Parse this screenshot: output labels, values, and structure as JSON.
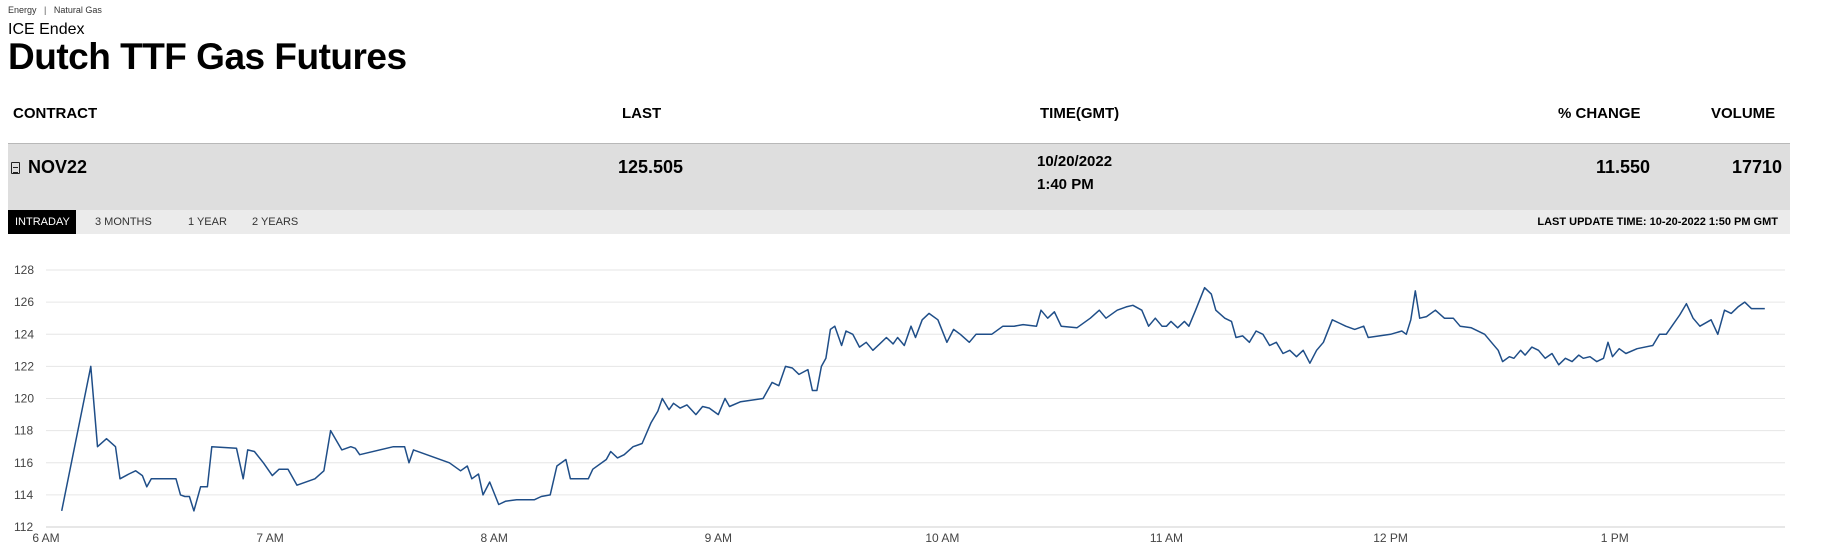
{
  "breadcrumb": {
    "items": [
      "Energy",
      "Natural Gas"
    ],
    "separator": "|"
  },
  "exchange": "ICE Endex",
  "title": "Dutch TTF Gas Futures",
  "table": {
    "headers": {
      "contract": "CONTRACT",
      "last": "LAST",
      "time": "TIME(GMT)",
      "change": "% CHANGE",
      "volume": "VOLUME"
    },
    "row": {
      "contract": "NOV22",
      "contract_icon": "document-icon",
      "last": "125.505",
      "date": "10/20/2022",
      "time": "1:40 PM",
      "change": "11.550",
      "volume": "17710"
    }
  },
  "tabs": [
    "INTRADAY",
    "3 MONTHS",
    "1 YEAR",
    "2 YEARS"
  ],
  "active_tab": "INTRADAY",
  "last_update": "LAST UPDATE TIME: 10-20-2022 1:50 PM GMT",
  "colors": {
    "line": "#1f4e88",
    "grid": "#e6e6e6",
    "row_bg": "#dedede",
    "tab_active": "#000000"
  },
  "chart_data": {
    "type": "line",
    "title": "",
    "xlabel": "",
    "ylabel": "",
    "ylim": [
      112,
      128
    ],
    "yticks": [
      128,
      126,
      124,
      122,
      120,
      118,
      116,
      114,
      112
    ],
    "xlim": [
      6.0,
      13.75
    ],
    "xticks": [
      {
        "value": 6,
        "label": "6 AM"
      },
      {
        "value": 7,
        "label": "7 AM"
      },
      {
        "value": 8,
        "label": "8 AM"
      },
      {
        "value": 9,
        "label": "9 AM"
      },
      {
        "value": 10,
        "label": "10 AM"
      },
      {
        "value": 11,
        "label": "11 AM"
      },
      {
        "value": 12,
        "label": "12 PM"
      },
      {
        "value": 13,
        "label": "1 PM"
      }
    ],
    "grid": "horizontal",
    "series": [
      {
        "points": [
          [
            6.07,
            113.0
          ],
          [
            6.2,
            122.0
          ],
          [
            6.23,
            117.0
          ],
          [
            6.27,
            117.5
          ],
          [
            6.31,
            117.0
          ],
          [
            6.33,
            115.0
          ],
          [
            6.37,
            115.3
          ],
          [
            6.4,
            115.5
          ],
          [
            6.43,
            115.2
          ],
          [
            6.45,
            114.5
          ],
          [
            6.47,
            115.0
          ],
          [
            6.58,
            115.0
          ],
          [
            6.6,
            114.0
          ],
          [
            6.62,
            113.9
          ],
          [
            6.64,
            113.9
          ],
          [
            6.66,
            113.0
          ],
          [
            6.69,
            114.5
          ],
          [
            6.72,
            114.5
          ],
          [
            6.74,
            117.0
          ],
          [
            6.85,
            116.9
          ],
          [
            6.88,
            115.0
          ],
          [
            6.9,
            116.8
          ],
          [
            6.93,
            116.7
          ],
          [
            6.97,
            116.0
          ],
          [
            7.01,
            115.2
          ],
          [
            7.04,
            115.6
          ],
          [
            7.08,
            115.6
          ],
          [
            7.12,
            114.6
          ],
          [
            7.2,
            115.0
          ],
          [
            7.24,
            115.5
          ],
          [
            7.27,
            118.0
          ],
          [
            7.32,
            116.8
          ],
          [
            7.36,
            117.0
          ],
          [
            7.38,
            116.9
          ],
          [
            7.4,
            116.5
          ],
          [
            7.55,
            117.0
          ],
          [
            7.6,
            117.0
          ],
          [
            7.62,
            116.0
          ],
          [
            7.64,
            116.8
          ],
          [
            7.8,
            116.0
          ],
          [
            7.85,
            115.5
          ],
          [
            7.88,
            115.8
          ],
          [
            7.9,
            115.0
          ],
          [
            7.93,
            115.3
          ],
          [
            7.95,
            114.0
          ],
          [
            7.98,
            114.8
          ],
          [
            8.02,
            113.4
          ],
          [
            8.05,
            113.6
          ],
          [
            8.1,
            113.7
          ],
          [
            8.18,
            113.7
          ],
          [
            8.21,
            113.9
          ],
          [
            8.25,
            114.0
          ],
          [
            8.28,
            115.8
          ],
          [
            8.32,
            116.2
          ],
          [
            8.34,
            115.0
          ],
          [
            8.42,
            115.0
          ],
          [
            8.44,
            115.6
          ],
          [
            8.5,
            116.2
          ],
          [
            8.52,
            116.7
          ],
          [
            8.55,
            116.3
          ],
          [
            8.58,
            116.5
          ],
          [
            8.62,
            117.0
          ],
          [
            8.66,
            117.2
          ],
          [
            8.7,
            118.5
          ],
          [
            8.73,
            119.2
          ],
          [
            8.75,
            120.0
          ],
          [
            8.78,
            119.3
          ],
          [
            8.8,
            119.7
          ],
          [
            8.83,
            119.4
          ],
          [
            8.86,
            119.6
          ],
          [
            8.9,
            119.0
          ],
          [
            8.93,
            119.5
          ],
          [
            8.96,
            119.4
          ],
          [
            9.0,
            119.0
          ],
          [
            9.03,
            120.0
          ],
          [
            9.05,
            119.5
          ],
          [
            9.1,
            119.8
          ],
          [
            9.2,
            120.0
          ],
          [
            9.24,
            121.0
          ],
          [
            9.27,
            120.8
          ],
          [
            9.3,
            122.0
          ],
          [
            9.33,
            121.9
          ],
          [
            9.36,
            121.5
          ],
          [
            9.4,
            121.8
          ],
          [
            9.42,
            120.5
          ],
          [
            9.44,
            120.5
          ],
          [
            9.46,
            122.0
          ],
          [
            9.48,
            122.5
          ],
          [
            9.5,
            124.3
          ],
          [
            9.52,
            124.5
          ],
          [
            9.55,
            123.3
          ],
          [
            9.57,
            124.2
          ],
          [
            9.6,
            124.0
          ],
          [
            9.63,
            123.2
          ],
          [
            9.66,
            123.5
          ],
          [
            9.69,
            123.0
          ],
          [
            9.72,
            123.4
          ],
          [
            9.75,
            123.8
          ],
          [
            9.78,
            123.4
          ],
          [
            9.8,
            123.8
          ],
          [
            9.83,
            123.3
          ],
          [
            9.86,
            124.5
          ],
          [
            9.88,
            123.8
          ],
          [
            9.91,
            124.9
          ],
          [
            9.94,
            125.3
          ],
          [
            9.98,
            124.9
          ],
          [
            10.02,
            123.5
          ],
          [
            10.05,
            124.3
          ],
          [
            10.08,
            124.0
          ],
          [
            10.12,
            123.5
          ],
          [
            10.15,
            124.0
          ],
          [
            10.22,
            124.0
          ],
          [
            10.27,
            124.5
          ],
          [
            10.32,
            124.5
          ],
          [
            10.36,
            124.6
          ],
          [
            10.42,
            124.5
          ],
          [
            10.44,
            125.5
          ],
          [
            10.47,
            125.0
          ],
          [
            10.5,
            125.4
          ],
          [
            10.53,
            124.5
          ],
          [
            10.6,
            124.4
          ],
          [
            10.66,
            125.0
          ],
          [
            10.7,
            125.5
          ],
          [
            10.73,
            125.0
          ],
          [
            10.78,
            125.5
          ],
          [
            10.82,
            125.7
          ],
          [
            10.85,
            125.8
          ],
          [
            10.89,
            125.5
          ],
          [
            10.92,
            124.5
          ],
          [
            10.95,
            125.0
          ],
          [
            10.98,
            124.5
          ],
          [
            11.0,
            124.5
          ],
          [
            11.02,
            124.8
          ],
          [
            11.05,
            124.4
          ],
          [
            11.08,
            124.8
          ],
          [
            11.1,
            124.5
          ],
          [
            11.13,
            125.5
          ],
          [
            11.17,
            126.9
          ],
          [
            11.2,
            126.5
          ],
          [
            11.22,
            125.5
          ],
          [
            11.26,
            125.0
          ],
          [
            11.29,
            124.8
          ],
          [
            11.31,
            123.8
          ],
          [
            11.34,
            123.9
          ],
          [
            11.37,
            123.5
          ],
          [
            11.4,
            124.2
          ],
          [
            11.43,
            124.0
          ],
          [
            11.46,
            123.3
          ],
          [
            11.49,
            123.5
          ],
          [
            11.52,
            122.8
          ],
          [
            11.55,
            123.0
          ],
          [
            11.58,
            122.6
          ],
          [
            11.61,
            123.0
          ],
          [
            11.64,
            122.2
          ],
          [
            11.67,
            123.0
          ],
          [
            11.7,
            123.5
          ],
          [
            11.74,
            124.9
          ],
          [
            11.77,
            124.7
          ],
          [
            11.8,
            124.5
          ],
          [
            11.84,
            124.3
          ],
          [
            11.88,
            124.5
          ],
          [
            11.9,
            123.8
          ],
          [
            11.95,
            123.9
          ],
          [
            12.0,
            124.0
          ],
          [
            12.05,
            124.2
          ],
          [
            12.07,
            124.0
          ],
          [
            12.09,
            124.9
          ],
          [
            12.11,
            126.7
          ],
          [
            12.13,
            125.0
          ],
          [
            12.16,
            125.1
          ],
          [
            12.2,
            125.5
          ],
          [
            12.24,
            125.0
          ],
          [
            12.28,
            125.0
          ],
          [
            12.31,
            124.5
          ],
          [
            12.36,
            124.4
          ],
          [
            12.42,
            124.0
          ],
          [
            12.45,
            123.5
          ],
          [
            12.48,
            123.0
          ],
          [
            12.5,
            122.3
          ],
          [
            12.53,
            122.6
          ],
          [
            12.55,
            122.5
          ],
          [
            12.58,
            123.0
          ],
          [
            12.6,
            122.7
          ],
          [
            12.63,
            123.2
          ],
          [
            12.66,
            123.0
          ],
          [
            12.69,
            122.5
          ],
          [
            12.72,
            122.8
          ],
          [
            12.75,
            122.1
          ],
          [
            12.78,
            122.5
          ],
          [
            12.81,
            122.3
          ],
          [
            12.84,
            122.7
          ],
          [
            12.86,
            122.5
          ],
          [
            12.89,
            122.6
          ],
          [
            12.92,
            122.3
          ],
          [
            12.95,
            122.5
          ],
          [
            12.97,
            123.5
          ],
          [
            12.99,
            122.6
          ],
          [
            13.02,
            123.1
          ],
          [
            13.05,
            122.8
          ],
          [
            13.1,
            123.1
          ],
          [
            13.17,
            123.3
          ],
          [
            13.2,
            124.0
          ],
          [
            13.23,
            124.0
          ],
          [
            13.26,
            124.6
          ],
          [
            13.29,
            125.2
          ],
          [
            13.32,
            125.9
          ],
          [
            13.35,
            125.0
          ],
          [
            13.38,
            124.5
          ],
          [
            13.43,
            124.9
          ],
          [
            13.46,
            124.0
          ],
          [
            13.49,
            125.5
          ],
          [
            13.52,
            125.3
          ],
          [
            13.55,
            125.7
          ],
          [
            13.58,
            126.0
          ],
          [
            13.61,
            125.6
          ],
          [
            13.67,
            125.6
          ]
        ]
      }
    ]
  }
}
